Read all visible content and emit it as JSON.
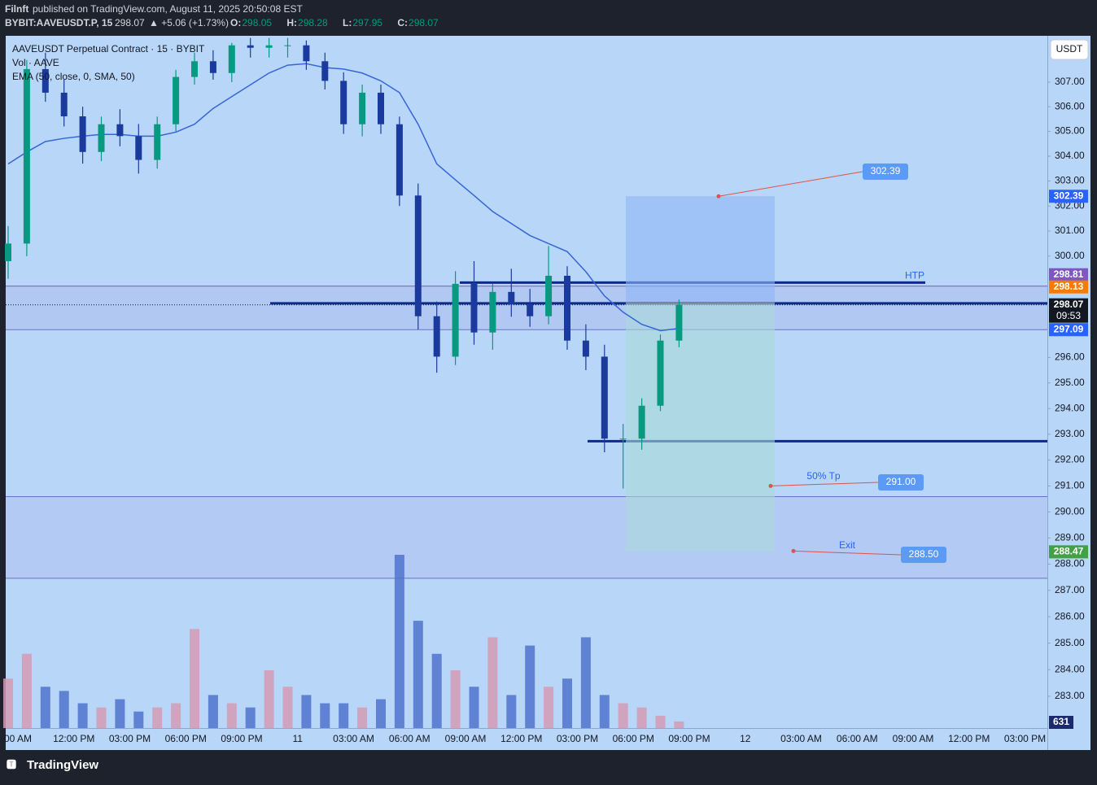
{
  "header": {
    "publisher": "Filnft",
    "published": "published on TradingView.com, August 11, 2025 20:50:08 EST",
    "symbol": "BYBIT:AAVEUSDT.P, 15",
    "change": "▲ +5.06 (+1.73%)",
    "ohlc": [
      {
        "key": "O:",
        "value": 298.05
      },
      {
        "key": "H:",
        "value": 298.28
      },
      {
        "key": "L:",
        "value": 297.95
      },
      {
        "key": "C:",
        "value": 298.07
      }
    ]
  },
  "chart_data": {
    "type": "candlestick",
    "title": "AAVEUSDT Perpetual Contract · 15 · BYBIT",
    "legend": [
      "Vol · AAVE",
      "EMA (50, close, 0, SMA, 50)"
    ],
    "currency": "USDT",
    "log_scale": true,
    "x_labels": [
      "00 AM",
      "12:00 PM",
      "03:00 PM",
      "06:00 PM",
      "09:00 PM",
      "11",
      "03:00 AM",
      "06:00 AM",
      "09:00 AM",
      "12:00 PM",
      "03:00 PM",
      "06:00 PM",
      "09:00 PM",
      "12",
      "03:00 AM",
      "06:00 AM",
      "09:00 AM",
      "12:00 PM",
      "03:00 PM"
    ],
    "open": [
      299.8,
      300.5,
      307.53,
      306.57,
      305.61,
      304.17,
      305.29,
      304.81,
      303.85,
      305.29,
      307.21,
      307.85,
      307.37,
      308.5,
      308.4,
      308.5,
      308.5,
      307.85,
      307.05,
      305.29,
      306.57,
      305.29,
      302.42,
      297.62,
      296.03,
      298.9,
      296.98,
      298.58,
      298.1,
      297.62,
      299.22,
      296.66,
      296.03,
      292.83,
      292.83,
      294.11,
      296.66
    ],
    "high": [
      301.2,
      307.9,
      308.2,
      307.1,
      306.0,
      305.6,
      305.9,
      305.3,
      305.6,
      307.5,
      308.2,
      308.3,
      308.6,
      308.8,
      308.8,
      308.8,
      308.7,
      308.2,
      307.4,
      306.9,
      306.9,
      305.6,
      302.9,
      298.2,
      299.4,
      299.8,
      298.9,
      299.5,
      298.7,
      300.4,
      299.6,
      297.3,
      296.5,
      293.4,
      294.4,
      296.9,
      298.28
    ],
    "low": [
      299.1,
      300.0,
      306.2,
      305.2,
      303.7,
      303.8,
      304.4,
      303.3,
      303.5,
      305.0,
      306.9,
      307.1,
      307.0,
      308.0,
      308.0,
      308.0,
      307.5,
      306.7,
      304.9,
      304.8,
      304.9,
      302.0,
      297.1,
      295.4,
      295.7,
      296.5,
      296.3,
      297.6,
      297.2,
      297.3,
      296.3,
      295.5,
      292.3,
      290.9,
      292.4,
      293.9,
      296.4
    ],
    "close": [
      300.5,
      307.53,
      306.57,
      305.61,
      304.17,
      305.29,
      304.81,
      303.85,
      305.29,
      307.21,
      307.85,
      307.37,
      308.5,
      308.4,
      308.5,
      308.5,
      307.85,
      307.05,
      305.29,
      306.57,
      305.29,
      302.42,
      297.62,
      296.03,
      298.9,
      296.98,
      298.58,
      298.1,
      297.62,
      299.22,
      296.66,
      296.03,
      292.83,
      292.83,
      294.11,
      296.66,
      298.07
    ],
    "volume": [
      4730,
      7100,
      3950,
      3550,
      2370,
      1970,
      2760,
      1580,
      1970,
      2370,
      9470,
      3160,
      2370,
      1970,
      5520,
      3950,
      3160,
      2370,
      2370,
      1970,
      2760,
      16570,
      10260,
      7100,
      5520,
      3950,
      8680,
      3160,
      7890,
      3950,
      4730,
      8680,
      3160,
      2370,
      1970,
      1180,
      631
    ],
    "ema": [
      303.69,
      304.17,
      304.59,
      304.72,
      304.81,
      304.88,
      304.88,
      304.81,
      304.81,
      304.97,
      305.29,
      305.93,
      306.41,
      306.89,
      307.37,
      307.69,
      307.75,
      307.59,
      307.53,
      307.37,
      307.05,
      306.57,
      305.29,
      303.69,
      303.05,
      302.42,
      301.78,
      301.3,
      300.82,
      300.5,
      300.18,
      299.38,
      298.42,
      297.78,
      297.3,
      297.05,
      297.14
    ],
    "ylim": [
      281.81,
      308.89
    ],
    "yticks": [
      {
        "value": 307,
        "label": "307.00"
      },
      {
        "value": 306,
        "label": "306.00"
      },
      {
        "value": 305,
        "label": "305.00"
      },
      {
        "value": 304,
        "label": "304.00"
      },
      {
        "value": 303,
        "label": "303.00"
      },
      {
        "value": 302,
        "label": "302.00"
      },
      {
        "value": 301,
        "label": "301.00"
      },
      {
        "value": 300,
        "label": "300.00"
      },
      {
        "value": 296,
        "label": "296.00"
      },
      {
        "value": 295,
        "label": "295.00"
      },
      {
        "value": 294,
        "label": "294.00"
      },
      {
        "value": 293,
        "label": "293.00"
      },
      {
        "value": 292,
        "label": "292.00"
      },
      {
        "value": 291,
        "label": "291.00"
      },
      {
        "value": 290,
        "label": "290.00"
      },
      {
        "value": 289,
        "label": "289.00"
      },
      {
        "value": 288,
        "label": "288.00"
      },
      {
        "value": 287,
        "label": "287.00"
      },
      {
        "value": 286,
        "label": "286.00"
      },
      {
        "value": 285,
        "label": "285.00"
      },
      {
        "value": 284,
        "label": "284.00"
      },
      {
        "value": 283,
        "label": "283.00"
      }
    ],
    "up_color": "#089981",
    "down_color": "#1a3a9e",
    "ema_color": "#3566d6",
    "price_lines": [
      {
        "value": 298.81,
        "color": "#7e57c2"
      },
      {
        "value": 298.13,
        "color": "#f57c00"
      },
      {
        "value": 297.09,
        "color": "#2962ff"
      }
    ],
    "levels": [
      292.73
    ],
    "zone": [
      287.46,
      290.59
    ],
    "position": {
      "target": 302.39,
      "entry": 298.17,
      "stop": 288.47
    },
    "annotations": [
      {
        "text": "HTP",
        "value": 298.95
      },
      {
        "text": "50% Tp",
        "value": 291,
        "label": "291.00"
      },
      {
        "text": "Exit",
        "value": 288.5,
        "label": "288.50"
      }
    ],
    "countdown": "09:53"
  },
  "footer": {
    "brand": "TradingView"
  }
}
